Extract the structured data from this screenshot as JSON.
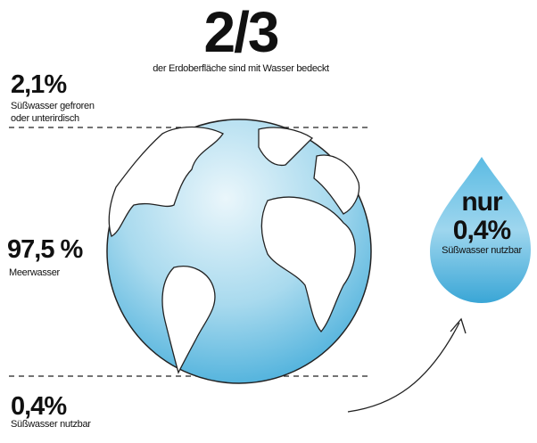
{
  "header": {
    "value": "2/3",
    "caption": "der Erdoberfläche sind mit Wasser bedeckt"
  },
  "items": [
    {
      "value": "2,1%",
      "label": [
        "Süßwasser gefroren",
        "oder unterirdisch"
      ]
    },
    {
      "value": "97,5 %",
      "label": [
        "Meerwasser"
      ]
    },
    {
      "value": "0,4%",
      "label": [
        "Süßwasser nutzbar"
      ]
    }
  ],
  "drop": {
    "prefix": "nur",
    "value": "0,4%",
    "label": "Süßwasser nutzbar"
  }
}
